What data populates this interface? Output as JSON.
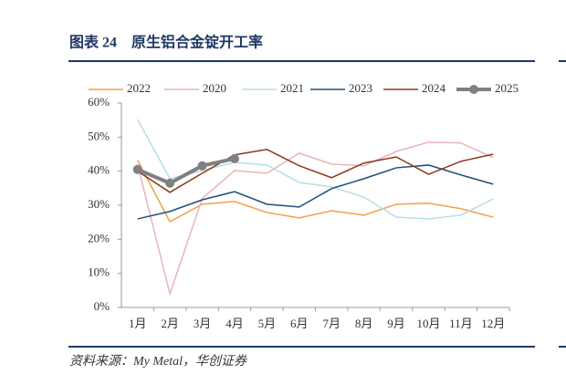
{
  "chart_data": {
    "type": "line",
    "title": "图表 24　原生铝合金锭开工率",
    "source": "资料来源：My Metal，华创证券",
    "categories": [
      "1月",
      "2月",
      "3月",
      "4月",
      "5月",
      "6月",
      "7月",
      "8月",
      "9月",
      "10月",
      "11月",
      "12月"
    ],
    "series": [
      {
        "name": "2022",
        "color": "#f4a04a",
        "width": 1.5,
        "values": [
          43.2,
          25.2,
          30.3,
          31.1,
          27.9,
          26.3,
          28.4,
          27.1,
          30.3,
          30.6,
          29.0,
          26.5
        ]
      },
      {
        "name": "2020",
        "color": "#e8b4bb",
        "width": 1.5,
        "values": [
          42.0,
          4.0,
          32.0,
          40.2,
          39.4,
          45.3,
          42.1,
          41.6,
          45.8,
          48.5,
          48.3,
          44.0
        ]
      },
      {
        "name": "2021",
        "color": "#b7dde8",
        "width": 1.5,
        "values": [
          55.2,
          37.8,
          40.2,
          42.6,
          41.8,
          36.7,
          35.4,
          32.4,
          26.5,
          26.0,
          27.1,
          31.9
        ]
      },
      {
        "name": "2023",
        "color": "#1f4e79",
        "width": 1.5,
        "values": [
          26.0,
          28.2,
          31.6,
          34.0,
          30.3,
          29.5,
          34.9,
          37.8,
          41.0,
          41.8,
          38.9,
          36.2
        ]
      },
      {
        "name": "2024",
        "color": "#8b3a1a",
        "width": 1.5,
        "values": [
          40.0,
          33.8,
          39.4,
          44.8,
          46.4,
          41.6,
          38.1,
          42.4,
          44.2,
          39.1,
          42.9,
          45.0
        ]
      },
      {
        "name": "2025",
        "color": "#808080",
        "width": 4,
        "markers": true,
        "values": [
          40.5,
          36.5,
          41.6,
          43.7,
          null,
          null,
          null,
          null,
          null,
          null,
          null,
          null
        ]
      }
    ],
    "ylim": [
      0,
      60
    ],
    "yticks": [
      {
        "value": 0,
        "label": "0%"
      },
      {
        "value": 10,
        "label": "10%"
      },
      {
        "value": 20,
        "label": "20%"
      },
      {
        "value": 30,
        "label": "30%"
      },
      {
        "value": 40,
        "label": "40%"
      },
      {
        "value": 50,
        "label": "50%"
      },
      {
        "value": 60,
        "label": "60%"
      }
    ],
    "legend": "top"
  }
}
